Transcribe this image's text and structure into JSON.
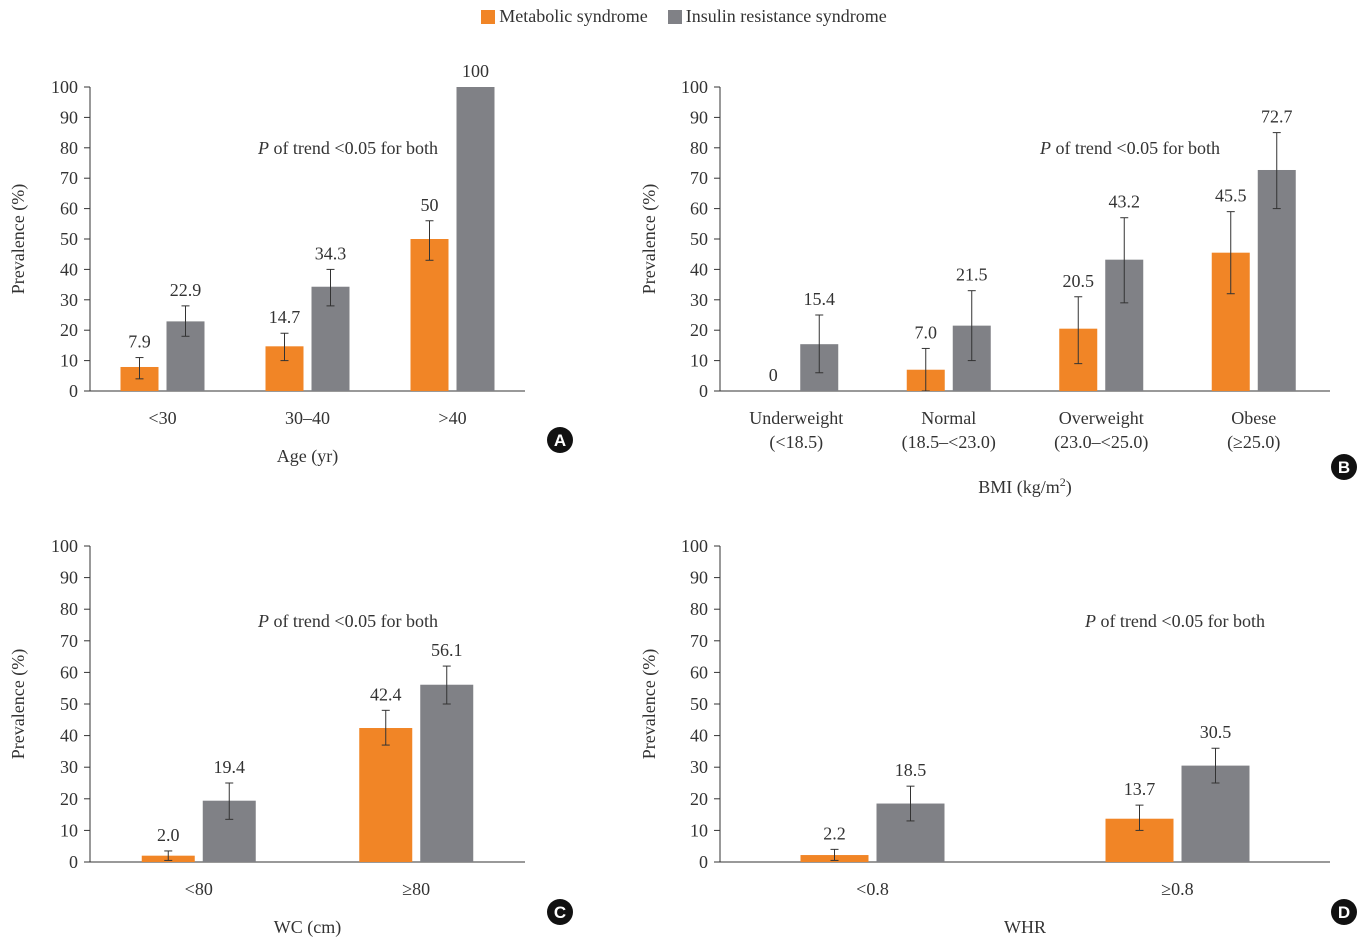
{
  "legend": {
    "items": [
      {
        "label": "Metabolic syndrome",
        "color": "#f18526"
      },
      {
        "label": "Insulin resistance syndrome",
        "color": "#808186"
      }
    ]
  },
  "chart_data": [
    {
      "id": "A",
      "type": "bar",
      "panel_label": "A",
      "ylabel": "Prevalence (%)",
      "xlabel": "Age (yr)",
      "ylim": [
        0,
        100
      ],
      "yticks": [
        0,
        10,
        20,
        30,
        40,
        50,
        60,
        70,
        80,
        90,
        100
      ],
      "annotation": {
        "italic": "P",
        "rest": " of trend <0.05 for both"
      },
      "categories": [
        [
          "<30"
        ],
        [
          "30–40"
        ],
        [
          ">40"
        ]
      ],
      "series": [
        {
          "name": "Metabolic syndrome",
          "color": "#f18526",
          "values": [
            7.9,
            14.7,
            50
          ],
          "labels": [
            "7.9",
            "14.7",
            "50"
          ],
          "err_low": [
            4,
            10,
            43
          ],
          "err_high": [
            11,
            19,
            56
          ]
        },
        {
          "name": "Insulin resistance syndrome",
          "color": "#808186",
          "values": [
            22.9,
            34.3,
            100
          ],
          "labels": [
            "22.9",
            "34.3",
            "100"
          ],
          "err_low": [
            18,
            28,
            null
          ],
          "err_high": [
            28,
            40,
            null
          ]
        }
      ]
    },
    {
      "id": "B",
      "type": "bar",
      "panel_label": "B",
      "ylabel": "Prevalence (%)",
      "xlabel": "BMI (kg/m",
      "xlabel_sup": "2",
      "xlabel_end": ")",
      "ylim": [
        0,
        100
      ],
      "yticks": [
        0,
        10,
        20,
        30,
        40,
        50,
        60,
        70,
        80,
        90,
        100
      ],
      "annotation": {
        "italic": "P",
        "rest": " of trend <0.05 for both"
      },
      "categories": [
        [
          "Underweight",
          "(<18.5)"
        ],
        [
          "Normal",
          "(18.5–<23.0)"
        ],
        [
          "Overweight",
          "(23.0–<25.0)"
        ],
        [
          "Obese",
          "(≥25.0)"
        ]
      ],
      "series": [
        {
          "name": "Metabolic syndrome",
          "color": "#f18526",
          "values": [
            0,
            7.0,
            20.5,
            45.5
          ],
          "labels": [
            "0",
            "7.0",
            "20.5",
            "45.5"
          ],
          "err_low": [
            null,
            0,
            9,
            32
          ],
          "err_high": [
            null,
            14,
            31,
            59
          ]
        },
        {
          "name": "Insulin resistance syndrome",
          "color": "#808186",
          "values": [
            15.4,
            21.5,
            43.2,
            72.7
          ],
          "labels": [
            "15.4",
            "21.5",
            "43.2",
            "72.7"
          ],
          "err_low": [
            6,
            10,
            29,
            60
          ],
          "err_high": [
            25,
            33,
            57,
            85
          ]
        }
      ]
    },
    {
      "id": "C",
      "type": "bar",
      "panel_label": "C",
      "ylabel": "Prevalence (%)",
      "xlabel": "WC (cm)",
      "ylim": [
        0,
        100
      ],
      "yticks": [
        0,
        10,
        20,
        30,
        40,
        50,
        60,
        70,
        80,
        90,
        100
      ],
      "annotation": {
        "italic": "P",
        "rest": " of trend <0.05 for both"
      },
      "categories": [
        [
          "<80"
        ],
        [
          "≥80"
        ]
      ],
      "series": [
        {
          "name": "Metabolic syndrome",
          "color": "#f18526",
          "values": [
            2.0,
            42.4
          ],
          "labels": [
            "2.0",
            "42.4"
          ],
          "err_low": [
            0.5,
            37
          ],
          "err_high": [
            3.5,
            48
          ]
        },
        {
          "name": "Insulin resistance syndrome",
          "color": "#808186",
          "values": [
            19.4,
            56.1
          ],
          "labels": [
            "19.4",
            "56.1"
          ],
          "err_low": [
            13.5,
            50
          ],
          "err_high": [
            25,
            62
          ]
        }
      ]
    },
    {
      "id": "D",
      "type": "bar",
      "panel_label": "D",
      "ylabel": "Prevalence (%)",
      "xlabel": "WHR",
      "ylim": [
        0,
        100
      ],
      "yticks": [
        0,
        10,
        20,
        30,
        40,
        50,
        60,
        70,
        80,
        90,
        100
      ],
      "annotation": {
        "italic": "P",
        "rest": " of trend <0.05 for both"
      },
      "categories": [
        [
          "<0.8"
        ],
        [
          "≥0.8"
        ]
      ],
      "series": [
        {
          "name": "Metabolic syndrome",
          "color": "#f18526",
          "values": [
            2.2,
            13.7
          ],
          "labels": [
            "2.2",
            "13.7"
          ],
          "err_low": [
            0.5,
            10
          ],
          "err_high": [
            4,
            18
          ]
        },
        {
          "name": "Insulin resistance syndrome",
          "color": "#808186",
          "values": [
            18.5,
            30.5
          ],
          "labels": [
            "18.5",
            "30.5"
          ],
          "err_low": [
            13,
            25
          ],
          "err_high": [
            24,
            36
          ]
        }
      ]
    }
  ]
}
